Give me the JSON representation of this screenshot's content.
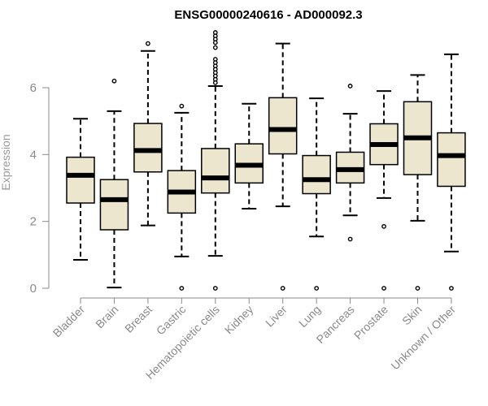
{
  "chart_data": {
    "type": "boxplot",
    "title": "ENSG00000240616 - AD000092.3",
    "xlabel": "",
    "ylabel": "Expression",
    "ylim": [
      0,
      7.7
    ],
    "yticks": [
      0,
      2,
      4,
      6
    ],
    "grid": false,
    "box_fill": "#ede6cf",
    "categories": [
      "Bladder",
      "Brain",
      "Breast",
      "Gastric",
      "Hematopoietic cells",
      "Kidney",
      "Liver",
      "Lung",
      "Pancreas",
      "Prostate",
      "Skin",
      "Unknown / Other"
    ],
    "series": [
      {
        "category": "Bladder",
        "min": 0.85,
        "q1": 2.55,
        "median": 3.38,
        "q3": 3.92,
        "max": 5.07,
        "outliers": []
      },
      {
        "category": "Brain",
        "min": 0.02,
        "q1": 1.75,
        "median": 2.65,
        "q3": 3.25,
        "max": 5.3,
        "outliers": [
          6.2
        ]
      },
      {
        "category": "Breast",
        "min": 1.88,
        "q1": 3.48,
        "median": 4.12,
        "q3": 4.93,
        "max": 7.1,
        "outliers": [
          7.32
        ]
      },
      {
        "category": "Gastric",
        "min": 0.95,
        "q1": 2.25,
        "median": 2.88,
        "q3": 3.52,
        "max": 5.25,
        "outliers": [
          5.45,
          0.0
        ]
      },
      {
        "category": "Hematopoietic cells",
        "min": 0.97,
        "q1": 2.85,
        "median": 3.3,
        "q3": 4.18,
        "max": 6.05,
        "outliers": [
          7.65,
          7.55,
          7.45,
          7.35,
          7.2,
          6.85,
          6.75,
          6.65,
          6.55,
          6.45,
          6.35,
          6.25,
          6.15,
          0.0
        ]
      },
      {
        "category": "Kidney",
        "min": 2.38,
        "q1": 3.15,
        "median": 3.68,
        "q3": 4.32,
        "max": 5.52,
        "outliers": []
      },
      {
        "category": "Liver",
        "min": 2.45,
        "q1": 4.02,
        "median": 4.75,
        "q3": 5.7,
        "max": 7.32,
        "outliers": [
          0.0
        ]
      },
      {
        "category": "Lung",
        "min": 1.55,
        "q1": 2.83,
        "median": 3.25,
        "q3": 3.97,
        "max": 5.68,
        "outliers": [
          0.0
        ]
      },
      {
        "category": "Pancreas",
        "min": 2.18,
        "q1": 3.15,
        "median": 3.55,
        "q3": 4.07,
        "max": 5.22,
        "outliers": [
          6.05,
          1.47
        ]
      },
      {
        "category": "Prostate",
        "min": 2.7,
        "q1": 3.7,
        "median": 4.3,
        "q3": 4.92,
        "max": 5.9,
        "outliers": [
          1.85,
          0.0
        ]
      },
      {
        "category": "Skin",
        "min": 2.02,
        "q1": 3.4,
        "median": 4.5,
        "q3": 5.58,
        "max": 6.38,
        "outliers": [
          0.0
        ]
      },
      {
        "category": "Unknown / Other",
        "min": 1.1,
        "q1": 3.05,
        "median": 3.97,
        "q3": 4.65,
        "max": 7.0,
        "outliers": [
          0.0
        ]
      }
    ]
  }
}
